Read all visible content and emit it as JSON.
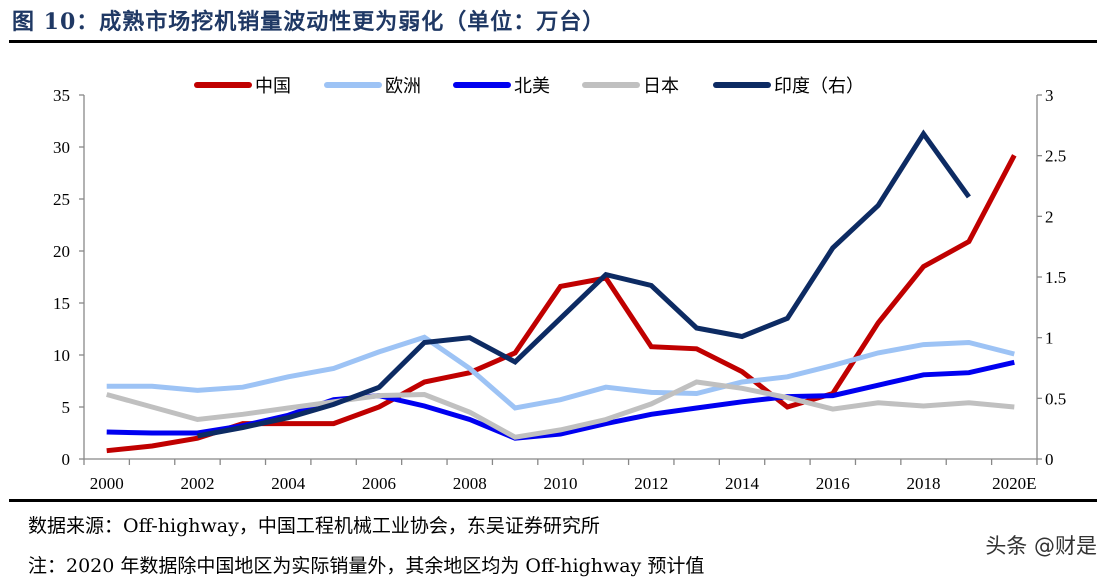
{
  "title": "图 10：成熟市场挖机销量波动性更为弱化（单位：万台）",
  "source": "数据来源：Off-highway，中国工程机械工业协会，东吴证券研究所",
  "note": "注：2020 年数据除中国地区为实际销量外，其余地区均为 Off-highway 预计值",
  "watermark": "头条 @财是",
  "chart_data": {
    "type": "line",
    "categories": [
      "2000",
      "2001",
      "2002",
      "2003",
      "2004",
      "2005",
      "2006",
      "2007",
      "2008",
      "2009",
      "2010",
      "2011",
      "2012",
      "2013",
      "2014",
      "2015",
      "2016",
      "2017",
      "2018",
      "2019",
      "2020E"
    ],
    "x_tick_labels": [
      "2000",
      "2002",
      "2004",
      "2006",
      "2008",
      "2010",
      "2012",
      "2014",
      "2016",
      "2018",
      "2020E"
    ],
    "ylim": [
      0,
      35
    ],
    "y_ticks": [
      0,
      5,
      10,
      15,
      20,
      25,
      30,
      35
    ],
    "y2lim": [
      0,
      3
    ],
    "y2_ticks": [
      "0",
      "0.5",
      "1",
      "1.5",
      "2",
      "2.5",
      "3"
    ],
    "legend_position": "top",
    "grid": false,
    "series": [
      {
        "name": "中国",
        "axis": "left",
        "color": "#c00000",
        "values": [
          0.8,
          1.25,
          2.0,
          3.4,
          3.4,
          3.4,
          5.0,
          7.4,
          8.3,
          10.2,
          16.6,
          17.4,
          10.8,
          10.6,
          8.4,
          5.0,
          6.3,
          13.1,
          18.5,
          20.9,
          29.2
        ]
      },
      {
        "name": "欧洲",
        "axis": "left",
        "color": "#9dc3f5",
        "values": [
          7.0,
          7.0,
          6.6,
          6.9,
          7.9,
          8.7,
          10.3,
          11.7,
          8.7,
          4.9,
          5.7,
          6.9,
          6.4,
          6.3,
          7.4,
          7.9,
          9.0,
          10.2,
          11.0,
          11.2,
          10.1
        ]
      },
      {
        "name": "北美",
        "axis": "left",
        "color": "#0000f0",
        "values": [
          2.6,
          2.5,
          2.5,
          3.2,
          4.2,
          5.7,
          6.1,
          5.1,
          3.8,
          2.0,
          2.4,
          3.4,
          4.3,
          4.9,
          5.5,
          6.0,
          6.1,
          7.1,
          8.1,
          8.3,
          9.3
        ]
      },
      {
        "name": "日本",
        "axis": "left",
        "color": "#c0c0c0",
        "values": [
          6.2,
          5.0,
          3.8,
          4.3,
          4.9,
          5.5,
          6.1,
          6.2,
          4.5,
          2.1,
          2.8,
          3.8,
          5.3,
          7.4,
          6.8,
          5.9,
          4.8,
          5.4,
          5.1,
          5.4,
          5.0
        ]
      },
      {
        "name": "印度（右）",
        "axis": "right",
        "color": "#0d2b63",
        "values": [
          null,
          null,
          0.19,
          0.26,
          0.34,
          0.45,
          0.59,
          0.96,
          1.0,
          0.8,
          1.16,
          1.52,
          1.43,
          1.08,
          1.01,
          1.16,
          1.74,
          2.09,
          2.68,
          2.16,
          null
        ]
      }
    ]
  }
}
